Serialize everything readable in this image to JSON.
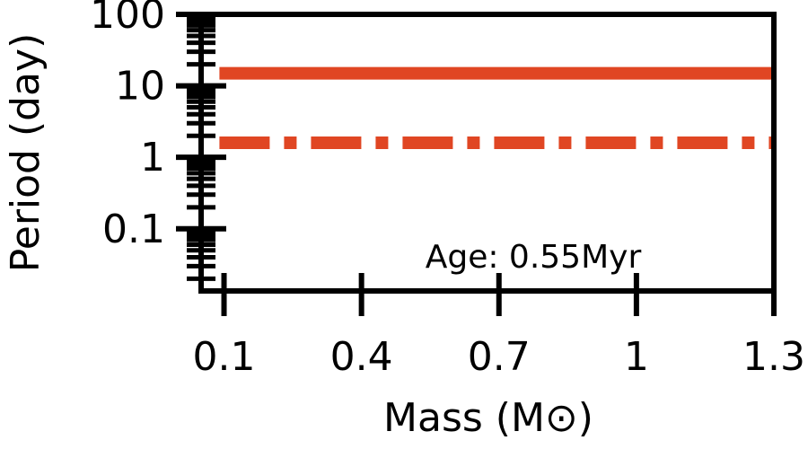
{
  "chart_data": {
    "type": "line",
    "title": "",
    "xlabel": "Mass (M⊙)",
    "ylabel": "Period (day)",
    "annotation": "Age: 0.55Myr",
    "x_scale": "linear",
    "y_scale": "log",
    "xlim": [
      0.05,
      1.3
    ],
    "ylim": [
      0.0135,
      100
    ],
    "x_ticks": [
      0.1,
      0.4,
      0.7,
      1,
      1.3
    ],
    "x_tick_labels": [
      "0.1",
      "0.4",
      "0.7",
      "1",
      "1.3"
    ],
    "y_ticks": [
      0.1,
      1,
      10,
      100
    ],
    "y_tick_labels": [
      "0.1",
      "1",
      "10",
      "100"
    ],
    "grid": false,
    "legend": "none",
    "series": [
      {
        "style": "solid",
        "color": "#e04623",
        "x": [
          0.09,
          1.3
        ],
        "y": [
          15,
          15
        ]
      },
      {
        "style": "dashdot",
        "color": "#e04623",
        "x": [
          0.09,
          1.3
        ],
        "y": [
          1.6,
          1.6
        ]
      }
    ]
  }
}
